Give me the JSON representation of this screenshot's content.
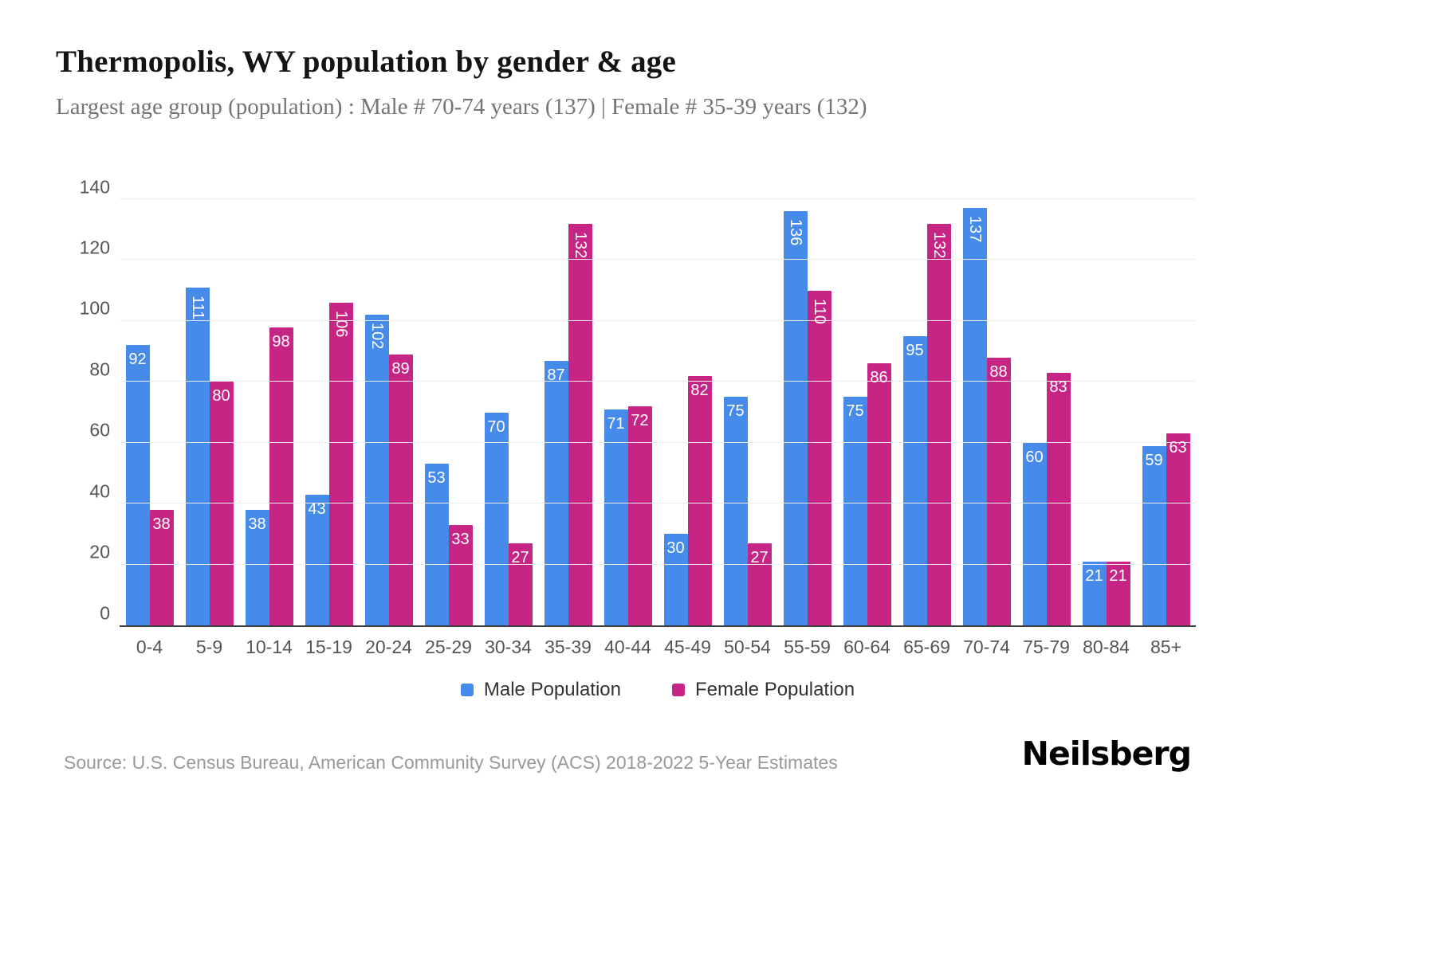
{
  "title": "Thermopolis, WY population by gender & age",
  "subtitle": "Largest age group (population) : Male # 70-74 years (137) | Female # 35-39 years (132)",
  "source": "Source: U.S. Census Bureau, American Community Survey (ACS) 2018-2022 5-Year Estimates",
  "logo": "Neilsberg",
  "colors": {
    "male": "#478bea",
    "female": "#c72585",
    "grid": "#ececec",
    "axis_text": "#555555",
    "bar_label": "#ffffff"
  },
  "legend": [
    {
      "label": "Male Population",
      "color_key": "male"
    },
    {
      "label": "Female Population",
      "color_key": "female"
    }
  ],
  "chart_data": {
    "type": "bar",
    "title": "Thermopolis, WY population by gender & age",
    "categories": [
      "0-4",
      "5-9",
      "10-14",
      "15-19",
      "20-24",
      "25-29",
      "30-34",
      "35-39",
      "40-44",
      "45-49",
      "50-54",
      "55-59",
      "60-64",
      "65-69",
      "70-74",
      "75-79",
      "80-84",
      "85+"
    ],
    "series": [
      {
        "name": "Male Population",
        "values": [
          92,
          111,
          38,
          43,
          102,
          53,
          70,
          87,
          71,
          30,
          75,
          136,
          75,
          95,
          137,
          60,
          21,
          59
        ]
      },
      {
        "name": "Female Population",
        "values": [
          38,
          80,
          98,
          106,
          89,
          33,
          27,
          132,
          72,
          82,
          27,
          110,
          86,
          132,
          88,
          83,
          21,
          63
        ]
      }
    ],
    "xlabel": "",
    "ylabel": "",
    "ylim": [
      0,
      140
    ],
    "yticks": [
      0,
      20,
      40,
      60,
      80,
      100,
      120,
      140
    ],
    "grid": true,
    "legend_position": "bottom",
    "data_labels": "inside-top, white, rotated vertical when value >= 100"
  }
}
